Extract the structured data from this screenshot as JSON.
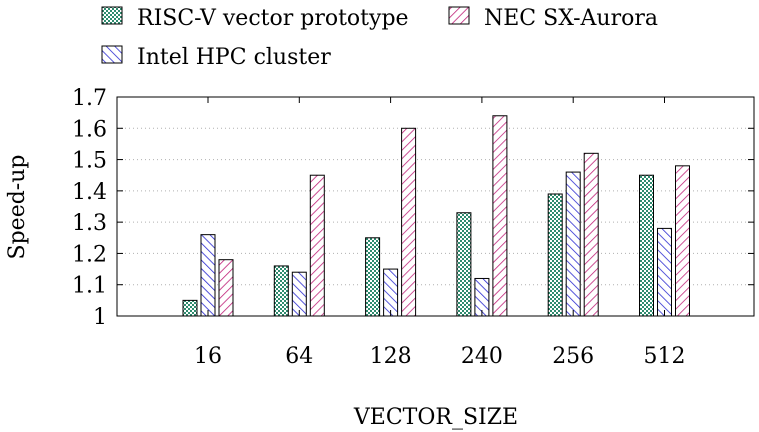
{
  "chart_data": {
    "type": "bar",
    "title": "",
    "xlabel": "VECTOR_SIZE",
    "ylabel": "Speed-up",
    "categories": [
      "16",
      "64",
      "128",
      "240",
      "256",
      "512"
    ],
    "ylim": [
      1,
      1.7
    ],
    "yticks": [
      1,
      1.1,
      1.2,
      1.3,
      1.4,
      1.5,
      1.6,
      1.7
    ],
    "ytick_labels": [
      "1",
      "1.1",
      "1.2",
      "1.3",
      "1.4",
      "1.5",
      "1.6",
      "1.7"
    ],
    "grid": "horizontal dotted",
    "legend_position": "top",
    "series": [
      {
        "name": "RISC-V vector prototype",
        "pattern": "checker",
        "color": "#2e8b6e",
        "values": [
          1.05,
          1.16,
          1.25,
          1.33,
          1.39,
          1.45
        ]
      },
      {
        "name": "Intel HPC cluster",
        "pattern": "diag-back",
        "color": "#2a2ad0",
        "values": [
          1.26,
          1.14,
          1.15,
          1.12,
          1.46,
          1.28
        ]
      },
      {
        "name": "NEC SX-Aurora",
        "pattern": "diag-fwd",
        "color": "#c0247a",
        "values": [
          1.18,
          1.45,
          1.6,
          1.64,
          1.52,
          1.48
        ]
      }
    ]
  }
}
